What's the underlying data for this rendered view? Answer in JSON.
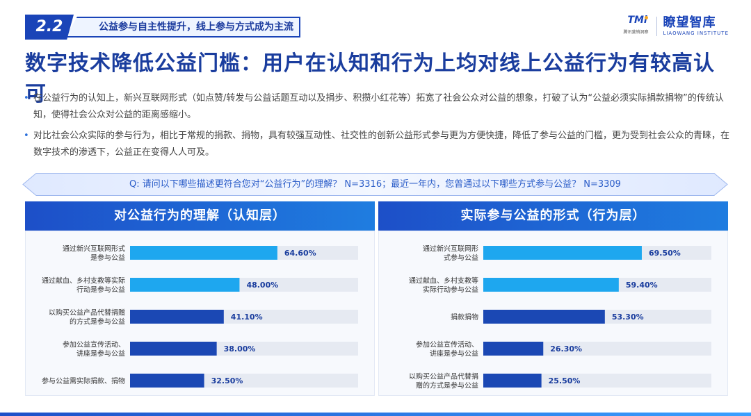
{
  "section": {
    "number": "2.2",
    "title": "公益参与自主性提升，线上参与方式成为主流"
  },
  "logo": {
    "mark": "TMi",
    "mark_sub": "腾讯营销洞察",
    "name_cn": "瞭望智库",
    "name_en": "LIAOWANG INSTITUTE"
  },
  "headline": "数字技术降低公益门槛：用户在认知和行为上均对线上公益行为有较高认可",
  "bullets": [
    "在公益行为的认知上，新兴互联网形式（如点赞/转发与公益话题互动以及捐步、积攒小红花等）拓宽了社会公众对公益的想象，打破了认为“公益必须实际捐款捐物”的传统认知，使得社会公众对公益的距离感缩小。",
    "对比社会公众实际的参与行为，相比于常规的捐款、捐物，具有较强互动性、社交性的创新公益形式参与更为方便快捷，降低了参与公益的门槛，更为受到社会公众的青睐，在数字技术的渗透下，公益正在变得人人可及。"
  ],
  "question": "Q: 请问以下哪些描述更符合您对“公益行为”的理解？ N=3316；最近一年内，您曾通过以下哪些方式参与公益？ N=3309",
  "colors": {
    "light_bar": "#1ea7ef",
    "dark_bar": "#1b48b4",
    "track": "#e6eaf2",
    "accent": "#1a44b8"
  },
  "chart_data": [
    {
      "type": "bar",
      "title": "对公益行为的理解（认知层）",
      "categories": [
        [
          "通过新兴互联网形式",
          "是参与公益"
        ],
        [
          "通过献血、乡村支教等实际",
          "行动是参与公益"
        ],
        [
          "以购买公益产品代替捐赠",
          "的方式是参与公益"
        ],
        [
          "参加公益宣传活动、",
          "讲座是参与公益"
        ],
        [
          "参与公益需实际捐款、捐物"
        ]
      ],
      "values": [
        64.6,
        48.0,
        41.1,
        38.0,
        32.5
      ],
      "labels": [
        "64.60%",
        "48.00%",
        "41.10%",
        "38.00%",
        "32.50%"
      ],
      "xlim": [
        0,
        100
      ]
    },
    {
      "type": "bar",
      "title": "实际参与公益的形式（行为层）",
      "categories": [
        [
          "通过新兴互联网形",
          "式参与公益"
        ],
        [
          "通过献血、乡村支教等",
          "实际行动参与公益"
        ],
        [
          "捐款捐物"
        ],
        [
          "参加公益宣传活动、",
          "讲座是参与公益"
        ],
        [
          "以购买公益产品代替捐",
          "赠的方式是参与公益"
        ]
      ],
      "values": [
        69.5,
        59.4,
        53.3,
        26.3,
        25.5
      ],
      "labels": [
        "69.50%",
        "59.40%",
        "53.30%",
        "26.30%",
        "25.50%"
      ],
      "xlim": [
        0,
        100
      ]
    }
  ]
}
